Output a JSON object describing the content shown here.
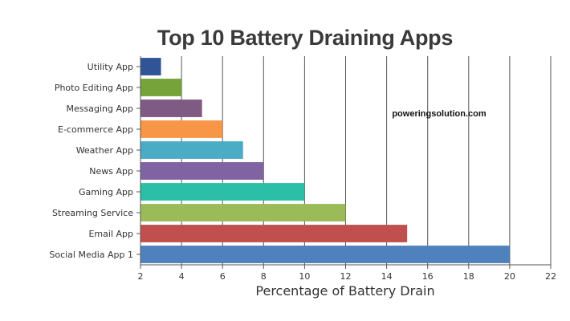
{
  "chart_data": {
    "type": "bar",
    "orientation": "horizontal",
    "title": "Top 10 Battery Draining Apps",
    "xlabel": "Percentage of Battery Drain",
    "ylabel": "",
    "xlim": [
      2,
      22
    ],
    "xticks": [
      2,
      4,
      6,
      8,
      10,
      12,
      14,
      16,
      18,
      20,
      22
    ],
    "grid": "vertical",
    "categories": [
      "Utility App",
      "Photo Editing App",
      "Messaging App",
      "E-commerce App",
      "Weather App",
      "News App",
      "Gaming App",
      "Streaming Service",
      "Email App",
      "Social Media App 1"
    ],
    "values": [
      3,
      4,
      5,
      6,
      7,
      8,
      10,
      12,
      15,
      20
    ],
    "colors": [
      "#2f5597",
      "#76a33a",
      "#7f5a83",
      "#f79646",
      "#4bacc6",
      "#8064a2",
      "#2bbfa8",
      "#9bbb59",
      "#c0504d",
      "#4f81bd"
    ],
    "annotation": "poweringsolution.com"
  }
}
